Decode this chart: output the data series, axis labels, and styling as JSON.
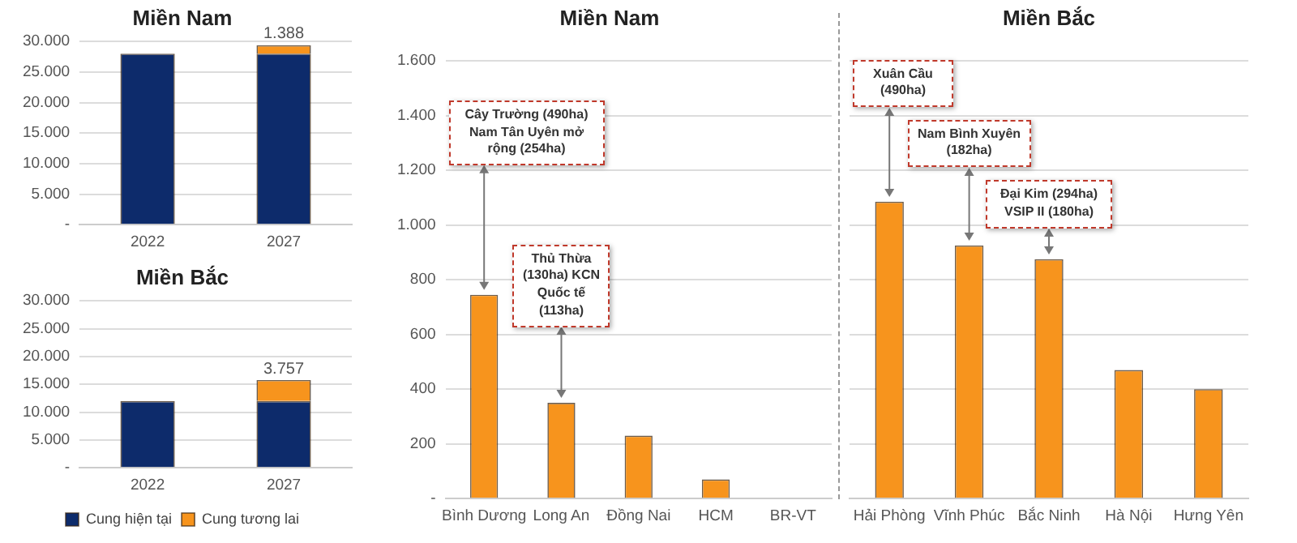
{
  "chart_data": [
    {
      "type": "bar",
      "title": "Miền Nam",
      "categories": [
        "2022",
        "2027"
      ],
      "stacked": true,
      "series": [
        {
          "color": "#0d2b6b",
          "values": [
            28000,
            28000
          ]
        },
        {
          "color": "#f7941d",
          "values": [
            null,
            1388
          ],
          "value_labels": [
            null,
            "1.388"
          ]
        }
      ],
      "ylim": [
        0,
        30000
      ],
      "yticks": [
        {
          "value": 0,
          "label": "-"
        },
        {
          "value": 5000,
          "label": "5.000"
        },
        {
          "value": 10000,
          "label": "10.000"
        },
        {
          "value": 15000,
          "label": "15.000"
        },
        {
          "value": 20000,
          "label": "20.000"
        },
        {
          "value": 25000,
          "label": "25.000"
        },
        {
          "value": 30000,
          "label": "30.000"
        }
      ],
      "grid": "y",
      "legend": false
    },
    {
      "type": "bar",
      "title": "Miền Bắc",
      "categories": [
        "2022",
        "2027"
      ],
      "stacked": true,
      "series": [
        {
          "name": "Cung hiện tại",
          "color": "#0d2b6b",
          "values": [
            12000,
            12000
          ]
        },
        {
          "name": "Cung tương lai",
          "color": "#f7941d",
          "values": [
            null,
            3757
          ],
          "value_labels": [
            null,
            "3.757"
          ]
        }
      ],
      "ylim": [
        0,
        30000
      ],
      "yticks": [
        {
          "value": 0,
          "label": "-"
        },
        {
          "value": 5000,
          "label": "5.000"
        },
        {
          "value": 10000,
          "label": "10.000"
        },
        {
          "value": 15000,
          "label": "15.000"
        },
        {
          "value": 20000,
          "label": "20.000"
        },
        {
          "value": 25000,
          "label": "25.000"
        },
        {
          "value": 30000,
          "label": "30.000"
        }
      ],
      "grid": "y",
      "legend": "bottom"
    },
    {
      "type": "bar",
      "title": "Miền Nam",
      "categories": [
        "Bình Dương",
        "Long An",
        "Đồng Nai",
        "HCM",
        "BR-VT"
      ],
      "values": [
        745,
        350,
        230,
        70,
        0
      ],
      "color": "#f7941d",
      "ylim": [
        0,
        1600
      ],
      "yticks": [
        {
          "value": 0,
          "label": "-"
        },
        {
          "value": 200,
          "label": "200"
        },
        {
          "value": 400,
          "label": "400"
        },
        {
          "value": 600,
          "label": "600"
        },
        {
          "value": 800,
          "label": "800"
        },
        {
          "value": 1000,
          "label": "1.000"
        },
        {
          "value": 1200,
          "label": "1.200"
        },
        {
          "value": 1400,
          "label": "1.400"
        },
        {
          "value": 1600,
          "label": "1.600"
        }
      ],
      "grid": "y",
      "legend": false,
      "annotations": [
        {
          "text": "Cây Trường (490ha) Nam Tân Uyên mở rộng (254ha)",
          "x": "Bình Dương",
          "y": 745
        },
        {
          "text": "Thủ Thừa (130ha) KCN Quốc tế (113ha)",
          "x": "Long An",
          "y": 350
        }
      ]
    },
    {
      "type": "bar",
      "title": "Miền Bắc",
      "categories": [
        "Hải Phòng",
        "Vĩnh Phúc",
        "Bắc Ninh",
        "Hà Nội",
        "Hưng Yên"
      ],
      "values": [
        1085,
        925,
        875,
        470,
        400
      ],
      "color": "#f7941d",
      "ylim": [
        0,
        1600
      ],
      "yticks": [
        0,
        200,
        400,
        600,
        800,
        1000,
        1200,
        1400,
        1600
      ],
      "grid": "y",
      "legend": false,
      "tick_labels": "x",
      "annotations": [
        {
          "text": "Xuân Cầu (490ha)",
          "x": "Hải Phòng",
          "y": 1085
        },
        {
          "text": "Nam Bình Xuyên (182ha)",
          "x": "Vĩnh Phúc",
          "y": 925
        },
        {
          "text": "Đại Kim (294ha) VSIP II (180ha)",
          "x": "Bắc Ninh",
          "y": 875
        }
      ]
    }
  ]
}
